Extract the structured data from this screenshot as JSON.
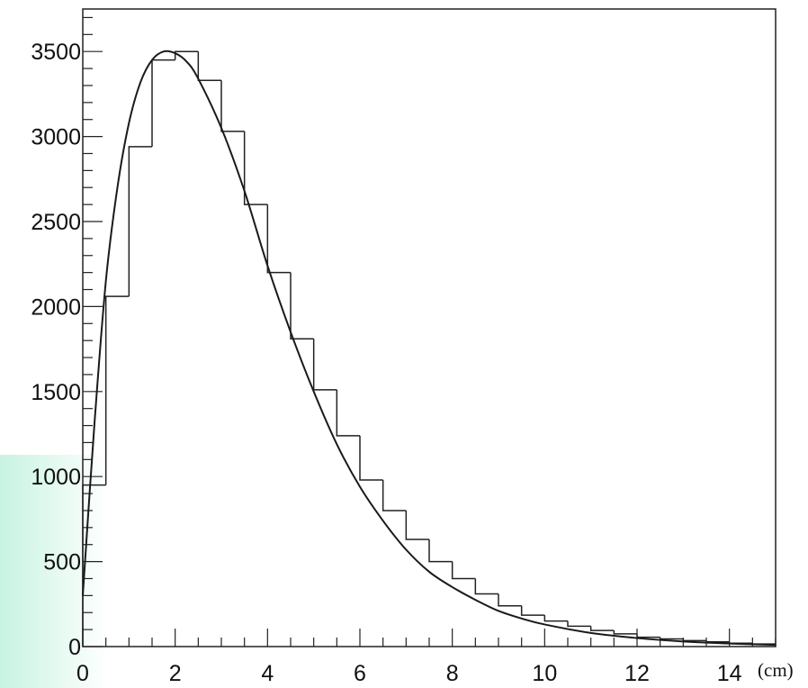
{
  "chart_data": {
    "type": "histogram",
    "title": "",
    "xlabel": "(cm)",
    "ylabel": "",
    "xlim": [
      0,
      15
    ],
    "ylim": [
      0,
      3750
    ],
    "x_ticks": [
      {
        "value": 0,
        "label": "0"
      },
      {
        "value": 2,
        "label": "2"
      },
      {
        "value": 4,
        "label": "4"
      },
      {
        "value": 6,
        "label": "6"
      },
      {
        "value": 8,
        "label": "8"
      },
      {
        "value": 10,
        "label": "10"
      },
      {
        "value": 12,
        "label": "12"
      },
      {
        "value": 14,
        "label": "14"
      }
    ],
    "y_ticks": [
      {
        "value": 0,
        "label": "0"
      },
      {
        "value": 500,
        "label": "500"
      },
      {
        "value": 1000,
        "label": "1000"
      },
      {
        "value": 1500,
        "label": "1500"
      },
      {
        "value": 2000,
        "label": "2000"
      },
      {
        "value": 2500,
        "label": "2500"
      },
      {
        "value": 3000,
        "label": "3000"
      },
      {
        "value": 3500,
        "label": "3500"
      }
    ],
    "grid": false,
    "histogram": {
      "bin_width": 0.5,
      "bin_start": 0,
      "counts": [
        950,
        2060,
        2940,
        3450,
        3500,
        3330,
        3030,
        2600,
        2200,
        1810,
        1510,
        1240,
        980,
        800,
        630,
        500,
        400,
        310,
        240,
        185,
        150,
        120,
        95,
        75,
        55,
        45,
        35,
        28,
        20,
        15
      ]
    },
    "fit_curve": {
      "x": [
        0,
        0.25,
        0.5,
        0.75,
        1,
        1.25,
        1.5,
        1.75,
        2,
        2.25,
        2.5,
        3,
        3.5,
        4,
        4.5,
        5,
        5.5,
        6,
        6.5,
        7,
        7.5,
        8,
        8.5,
        9,
        9.5,
        10,
        11,
        12,
        13,
        14,
        15
      ],
      "y": [
        300,
        1300,
        2150,
        2700,
        3080,
        3320,
        3450,
        3500,
        3490,
        3440,
        3340,
        3050,
        2680,
        2240,
        1850,
        1500,
        1190,
        940,
        740,
        570,
        440,
        350,
        275,
        210,
        165,
        130,
        80,
        50,
        30,
        18,
        10
      ]
    },
    "colors": {
      "line": "#222222",
      "background": "#ffffff"
    }
  }
}
